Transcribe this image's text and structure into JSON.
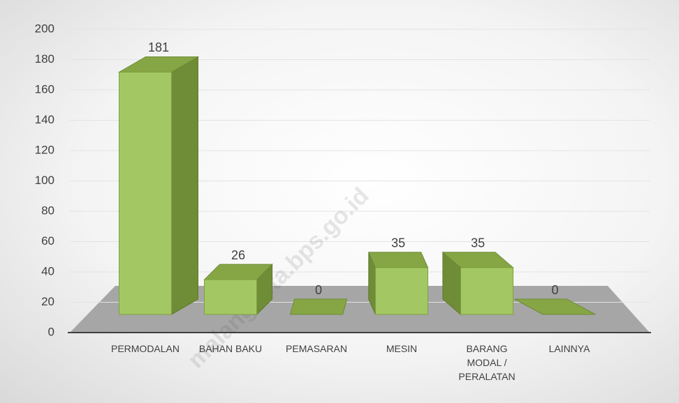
{
  "chart_data": {
    "type": "bar3d",
    "categories": [
      "PERMODALAN",
      "BAHAN BAKU",
      "PEMASARAN",
      "MESIN",
      "BARANG MODAL / PERALATAN",
      "LAINNYA"
    ],
    "values": [
      181,
      26,
      0,
      35,
      35,
      0
    ],
    "color": "#a3c763",
    "ylim": [
      0,
      200
    ],
    "yticks": [
      0,
      20,
      40,
      60,
      80,
      100,
      120,
      140,
      160,
      180,
      200
    ],
    "grid": true,
    "watermark": "malangkota.bps.go.id"
  }
}
